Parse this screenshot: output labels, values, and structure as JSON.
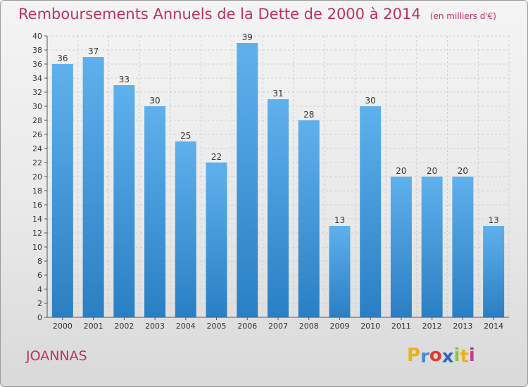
{
  "title": "Remboursements Annuels de la Dette de 2000 à 2014",
  "unit": "(en milliers d'€)",
  "city": "JOANNAS",
  "logo": {
    "letters": [
      "P",
      "r",
      "o",
      "x",
      "i",
      "t",
      "i"
    ],
    "colors": [
      "#e8b21a",
      "#3e8fd6",
      "#e33a2a",
      "#2f66c5",
      "#8cc63f",
      "#e8b21a",
      "#c63a8c"
    ]
  },
  "colors": {
    "bar_top": "#5fb1ec",
    "bar_bottom": "#2a7fc4",
    "title": "#c0325a",
    "grid": "#cfcfcf"
  },
  "chart_data": {
    "type": "bar",
    "categories": [
      "2000",
      "2001",
      "2002",
      "2003",
      "2004",
      "2005",
      "2006",
      "2007",
      "2008",
      "2009",
      "2010",
      "2011",
      "2012",
      "2013",
      "2014"
    ],
    "values": [
      36,
      37,
      33,
      30,
      25,
      22,
      39,
      31,
      28,
      13,
      30,
      20,
      20,
      20,
      13
    ],
    "ylim": [
      0,
      40
    ],
    "yticks": [
      0,
      2,
      4,
      6,
      8,
      10,
      12,
      14,
      16,
      18,
      20,
      22,
      24,
      26,
      28,
      30,
      32,
      34,
      36,
      38,
      40
    ],
    "grid": true
  }
}
